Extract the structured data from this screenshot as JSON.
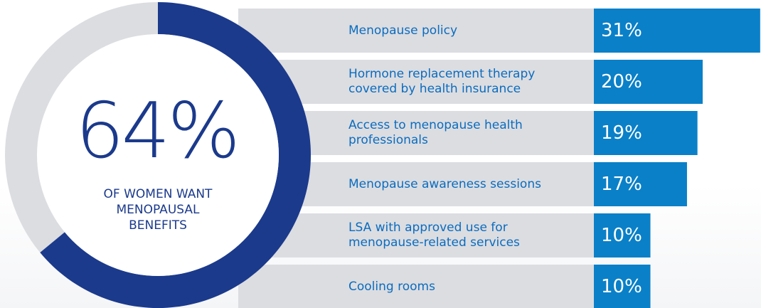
{
  "chart_data": [
    {
      "type": "donut",
      "value": 64,
      "value_label": "64%",
      "caption": "OF WOMEN WANT MENOPAUSAL BENEFITS",
      "color": "#1b3a8c",
      "track_color": "#dcdde1"
    },
    {
      "type": "bar",
      "categories": [
        "Menopause policy",
        "Hormone replacement therapy covered by health insurance",
        "Access to menopause health professionals",
        "Menopause awareness sessions",
        "LSA with approved use for menopause-related services",
        "Cooling rooms"
      ],
      "values": [
        31,
        20,
        19,
        17,
        10,
        10
      ],
      "value_labels": [
        "31%",
        "20%",
        "19%",
        "17%",
        "10%",
        "10%"
      ],
      "color": "#0a80c8",
      "row_color": "#dcdde1"
    }
  ]
}
